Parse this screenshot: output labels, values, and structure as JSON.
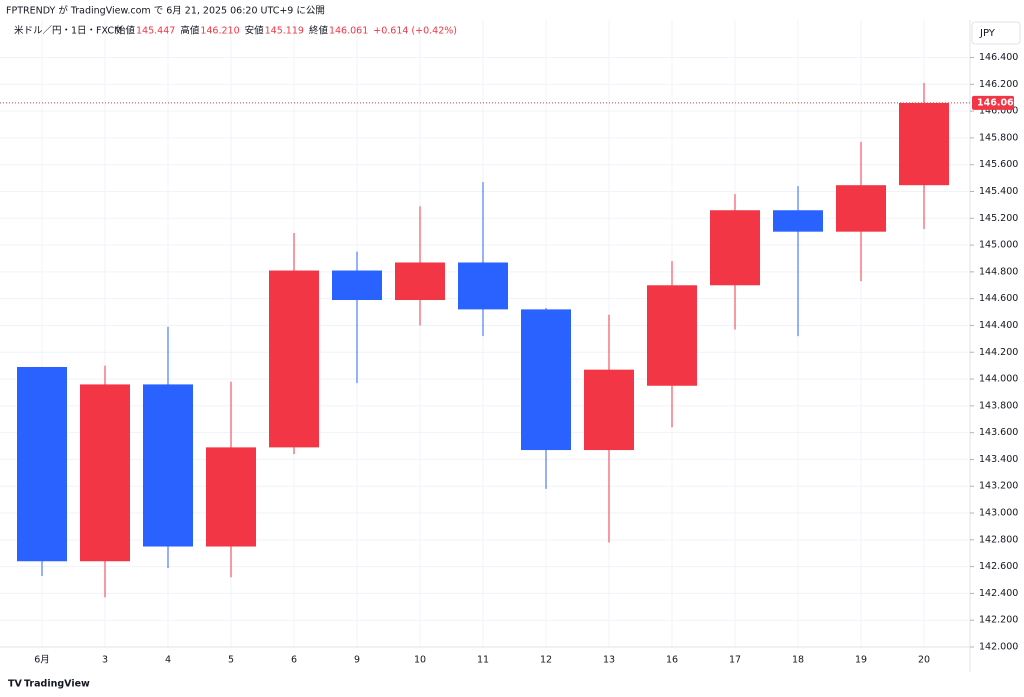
{
  "header": {
    "published": "FPTRENDY が TradingView.com で 6月 21, 2025 06:20 UTC+9 に公開",
    "symbol": "米ドル／円・1日・FXCM",
    "ohlc": [
      {
        "label": "始値",
        "value": "145.447"
      },
      {
        "label": "高値",
        "value": "146.210"
      },
      {
        "label": "安値",
        "value": "145.119"
      },
      {
        "label": "終値",
        "value": "146.061"
      }
    ],
    "change": "+0.614 (+0.42%)",
    "currency": "JPY"
  },
  "footer": {
    "brand": "TradingView"
  },
  "chart_data": {
    "type": "candlestick",
    "categories": [
      "6月",
      "3",
      "4",
      "5",
      "6",
      "9",
      "10",
      "11",
      "12",
      "13",
      "16",
      "17",
      "18",
      "19",
      "20"
    ],
    "open": [
      144.09,
      142.64,
      143.96,
      142.75,
      143.49,
      144.81,
      144.59,
      144.87,
      144.52,
      143.47,
      143.95,
      144.7,
      145.26,
      145.1,
      145.447
    ],
    "high": [
      144.09,
      144.1,
      144.39,
      143.98,
      145.09,
      144.95,
      145.29,
      145.47,
      144.53,
      144.48,
      144.88,
      145.38,
      145.44,
      145.77,
      146.21
    ],
    "low": [
      142.53,
      142.37,
      142.59,
      142.52,
      143.44,
      143.97,
      144.4,
      144.32,
      143.18,
      142.78,
      143.64,
      144.37,
      144.32,
      144.73,
      145.119
    ],
    "close": [
      142.64,
      143.96,
      142.75,
      143.49,
      144.81,
      144.59,
      144.87,
      144.52,
      143.47,
      144.07,
      144.7,
      145.26,
      145.1,
      145.447,
      146.061
    ],
    "up_color": "#f23645",
    "down_color": "#2962ff",
    "ylim": [
      142,
      146.68
    ],
    "yticks": [
      {
        "value": 142,
        "label": "142.000"
      },
      {
        "value": 142.2,
        "label": "142.200"
      },
      {
        "value": 142.4,
        "label": "142.400"
      },
      {
        "value": 142.6,
        "label": "142.600"
      },
      {
        "value": 142.8,
        "label": "142.800"
      },
      {
        "value": 143,
        "label": "143.000"
      },
      {
        "value": 143.2,
        "label": "143.200"
      },
      {
        "value": 143.4,
        "label": "143.400"
      },
      {
        "value": 143.6,
        "label": "143.600"
      },
      {
        "value": 143.8,
        "label": "143.800"
      },
      {
        "value": 144,
        "label": "144.000"
      },
      {
        "value": 144.2,
        "label": "144.200"
      },
      {
        "value": 144.4,
        "label": "144.400"
      },
      {
        "value": 144.6,
        "label": "144.600"
      },
      {
        "value": 144.8,
        "label": "144.800"
      },
      {
        "value": 145,
        "label": "145.000"
      },
      {
        "value": 145.2,
        "label": "145.200"
      },
      {
        "value": 145.4,
        "label": "145.400"
      },
      {
        "value": 145.6,
        "label": "145.600"
      },
      {
        "value": 145.8,
        "label": "145.800"
      },
      {
        "value": 146,
        "label": "146.000"
      },
      {
        "value": 146.2,
        "label": "146.200"
      },
      {
        "value": 146.4,
        "label": "146.400"
      }
    ],
    "grid": true
  }
}
